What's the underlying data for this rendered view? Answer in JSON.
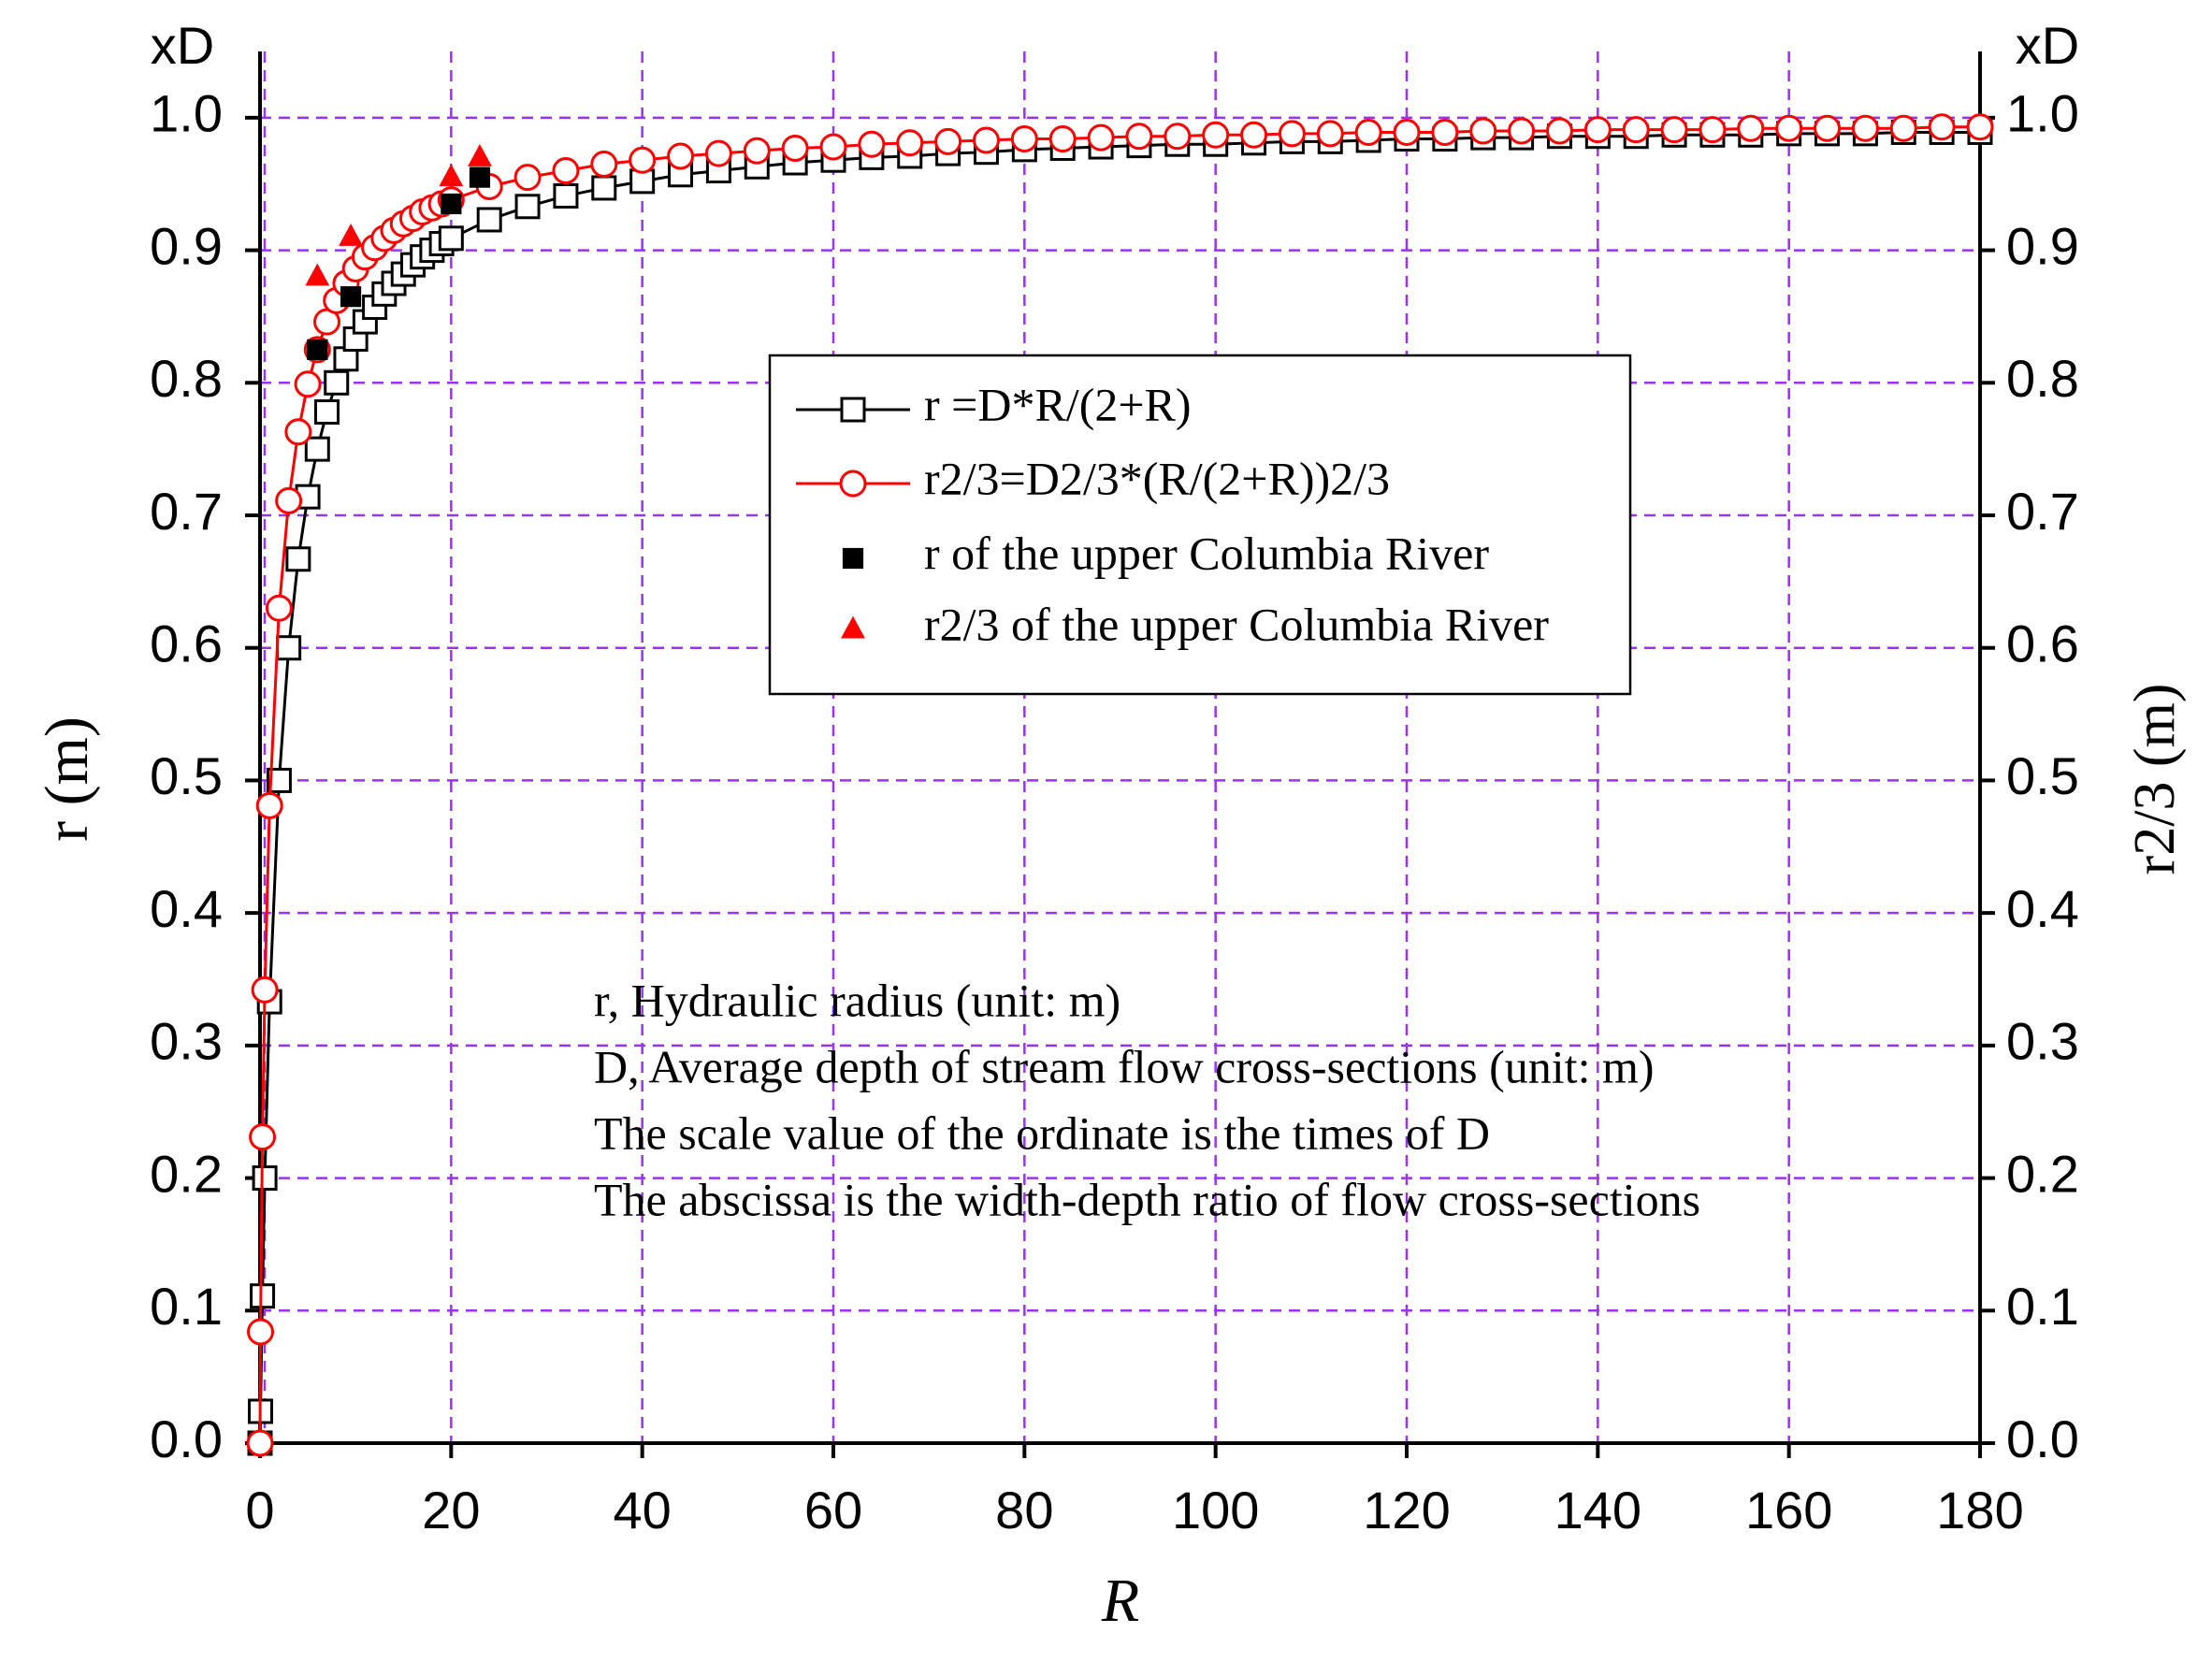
{
  "chart_data": {
    "type": "line",
    "xlabel": "R",
    "ylabel": "r (m)",
    "y2label": "r2/3 (m)",
    "y_unit_label": "xD",
    "y2_unit_label": "xD",
    "xlim": [
      0,
      180
    ],
    "xticks": [
      0,
      20,
      40,
      60,
      80,
      100,
      120,
      140,
      160,
      180
    ],
    "ylim": [
      0,
      1.05
    ],
    "yticks": [
      {
        "value": 0,
        "label": "0.0"
      },
      0.1,
      0.2,
      0.3,
      0.4,
      0.5,
      0.6,
      0.7,
      0.8,
      0.9,
      {
        "value": 1,
        "label": "1.0"
      }
    ],
    "y2lim": [
      0,
      1.05
    ],
    "y2ticks": [
      {
        "value": 0,
        "label": "0.0"
      },
      0.1,
      0.2,
      0.3,
      0.4,
      0.5,
      0.6,
      0.7,
      0.8,
      0.9,
      {
        "value": 1,
        "label": "1.0"
      }
    ],
    "grid": true,
    "grid_color": "#9a33ee",
    "legend_position": "upper center",
    "series": [
      {
        "name": "r =D*R/(2+R)",
        "color": "#000000",
        "marker": "square",
        "filled": false,
        "line": true,
        "x": [
          0,
          0.05,
          0.25,
          0.5,
          1,
          2,
          3,
          4,
          5,
          6,
          7,
          8,
          9,
          10,
          11,
          12,
          13,
          14,
          15,
          16,
          17,
          18,
          19,
          20,
          24,
          28,
          32,
          36,
          40,
          44,
          48,
          52,
          56,
          60,
          64,
          68,
          72,
          76,
          80,
          84,
          88,
          92,
          96,
          100,
          104,
          108,
          112,
          116,
          120,
          124,
          128,
          132,
          136,
          140,
          144,
          148,
          152,
          156,
          160,
          164,
          168,
          172,
          176,
          180
        ],
        "values": [
          0,
          0.024,
          0.111,
          0.2,
          0.333,
          0.5,
          0.6,
          0.667,
          0.714,
          0.75,
          0.778,
          0.8,
          0.818,
          0.833,
          0.846,
          0.857,
          0.867,
          0.875,
          0.882,
          0.889,
          0.895,
          0.9,
          0.905,
          0.909,
          0.923,
          0.933,
          0.941,
          0.947,
          0.952,
          0.957,
          0.96,
          0.963,
          0.966,
          0.968,
          0.97,
          0.971,
          0.973,
          0.974,
          0.976,
          0.977,
          0.978,
          0.979,
          0.98,
          0.98,
          0.981,
          0.982,
          0.982,
          0.983,
          0.984,
          0.984,
          0.985,
          0.985,
          0.986,
          0.986,
          0.986,
          0.987,
          0.987,
          0.987,
          0.988,
          0.988,
          0.988,
          0.989,
          0.989,
          0.989
        ]
      },
      {
        "name": "r2/3=D2/3*(R/(2+R))2/3",
        "color": "#ff0000",
        "marker": "circle",
        "filled": false,
        "line": true,
        "x": [
          0,
          0.05,
          0.25,
          0.5,
          1,
          2,
          3,
          4,
          5,
          6,
          7,
          8,
          9,
          10,
          11,
          12,
          13,
          14,
          15,
          16,
          17,
          18,
          19,
          20,
          24,
          28,
          32,
          36,
          40,
          44,
          48,
          52,
          56,
          60,
          64,
          68,
          72,
          76,
          80,
          84,
          88,
          92,
          96,
          100,
          104,
          108,
          112,
          116,
          120,
          124,
          128,
          132,
          136,
          140,
          144,
          148,
          152,
          156,
          160,
          164,
          168,
          172,
          176,
          180
        ],
        "values": [
          0,
          0.084,
          0.231,
          0.342,
          0.481,
          0.63,
          0.711,
          0.763,
          0.799,
          0.825,
          0.846,
          0.862,
          0.875,
          0.886,
          0.895,
          0.902,
          0.909,
          0.915,
          0.92,
          0.924,
          0.929,
          0.932,
          0.935,
          0.938,
          0.948,
          0.955,
          0.96,
          0.965,
          0.968,
          0.971,
          0.973,
          0.975,
          0.977,
          0.978,
          0.98,
          0.981,
          0.982,
          0.983,
          0.984,
          0.984,
          0.985,
          0.986,
          0.986,
          0.987,
          0.987,
          0.988,
          0.988,
          0.989,
          0.989,
          0.989,
          0.99,
          0.99,
          0.99,
          0.991,
          0.991,
          0.991,
          0.991,
          0.992,
          0.992,
          0.992,
          0.992,
          0.992,
          0.993,
          0.993
        ]
      },
      {
        "name": "r  of the upper Columbia River",
        "color": "#000000",
        "marker": "square",
        "filled": true,
        "line": false,
        "x": [
          6,
          9.5,
          20,
          23
        ],
        "values": [
          0.825,
          0.865,
          0.935,
          0.955
        ]
      },
      {
        "name": "r2/3 of the upper Columbia River",
        "color": "#ff0000",
        "marker": "triangle",
        "filled": true,
        "line": false,
        "x": [
          6,
          9.5,
          20,
          23
        ],
        "values": [
          0.88,
          0.91,
          0.955,
          0.97
        ]
      }
    ],
    "annotations": [
      "r, Hydraulic radius (unit: m)",
      "D, Average depth of stream flow cross-sections (unit: m)",
      "The scale value of the ordinate is the times of D",
      "The abscissa is the width-depth ratio of flow cross-sections"
    ]
  }
}
